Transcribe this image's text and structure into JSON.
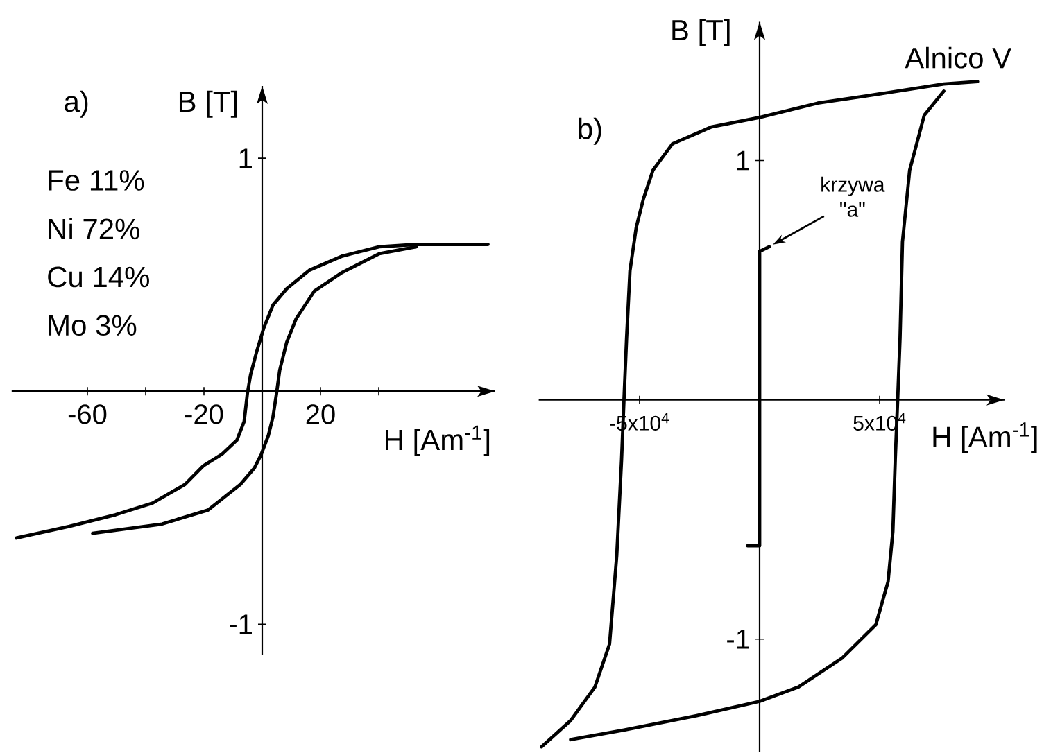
{
  "chart_data": [
    {
      "type": "line",
      "title": "a)",
      "xlabel": "H [Am$^{-1}$]",
      "ylabel": "B [T]",
      "annotations": [
        "Fe 11%",
        "Ni 72%",
        "Cu 14%",
        "Mo 3%"
      ],
      "xlim": [
        -86,
        80
      ],
      "ylim": [
        -1.13,
        1.31
      ],
      "xticks": [
        -60,
        {
          "value": -40,
          "label": null
        },
        -20,
        20,
        {
          "value": 40,
          "label": null
        }
      ],
      "yticks": [
        -1,
        1
      ],
      "series": [
        {
          "color": "#000000",
          "x": [
            77.5,
            52.9,
            40.2,
            27.5,
            16.3,
            8.4,
            3.7,
            0.5,
            -1.9,
            -4,
            -5.1,
            -6.2,
            -8.7,
            -13.8,
            -20.2,
            -26.5,
            -37.6,
            -50.3,
            -66.2,
            -84.4
          ],
          "values": [
            0.63,
            0.63,
            0.62,
            0.58,
            0.52,
            0.44,
            0.37,
            0.27,
            0.17,
            0.07,
            -0.01,
            -0.13,
            -0.21,
            -0.27,
            -0.32,
            -0.4,
            -0.48,
            -0.53,
            -0.58,
            -0.63
          ]
        },
        {
          "color": "#000000",
          "x": [
            -58.2,
            -34.4,
            -18.6,
            -7.5,
            -2.7,
            -0.3,
            2.1,
            3.7,
            4.9,
            6,
            8.4,
            11.6,
            17.9,
            27.5,
            40.2,
            52.9
          ],
          "values": [
            -0.61,
            -0.57,
            -0.51,
            -0.4,
            -0.33,
            -0.27,
            -0.19,
            -0.11,
            -0.01,
            0.09,
            0.21,
            0.31,
            0.43,
            0.51,
            0.59,
            0.62
          ]
        }
      ]
    },
    {
      "type": "line",
      "title": "b)",
      "xlabel": "H [Am$^{-1}$]",
      "ylabel": "B [T]",
      "annotations": [
        {
          "text": "krzywa \"a\"",
          "x": 4000,
          "y": 0.64
        }
      ],
      "xlim": [
        -92000,
        102000
      ],
      "ylim": [
        -1.47,
        1.58
      ],
      "xticks": [
        {
          "value": -50000,
          "label": "-5x10$^{4}$"
        },
        {
          "value": 50000,
          "label": "5x10$^{4}$"
        }
      ],
      "yticks": [
        -1,
        1
      ],
      "series": [
        {
          "name": "Alnico V",
          "color": "#000000",
          "x": [
            90800,
            76700,
            44400,
            24200,
            0,
            -20200,
            -36300,
            -44400,
            -48400,
            -51400,
            -54000,
            -55400,
            -56500,
            -57500,
            -59500,
            -62500,
            -68600,
            -78700,
            -90800
          ],
          "values": [
            1.33,
            1.32,
            1.27,
            1.24,
            1.18,
            1.14,
            1.07,
            0.96,
            0.84,
            0.72,
            0.54,
            0.26,
            0,
            -0.25,
            -0.65,
            -1.02,
            -1.2,
            -1.34,
            -1.45
          ]
        },
        {
          "color": "#000000",
          "x": [
            -78700,
            -56500,
            -26200,
            0,
            16200,
            34300,
            48400,
            53500,
            55500,
            56500,
            57500,
            58500,
            59500,
            62500,
            68600,
            76700
          ],
          "values": [
            -1.42,
            -1.38,
            -1.32,
            -1.26,
            -1.2,
            -1.08,
            -0.94,
            -0.76,
            -0.55,
            -0.25,
            0,
            0.26,
            0.66,
            0.96,
            1.19,
            1.29
          ]
        },
        {
          "color": "#000000",
          "x": [
            -5000,
            0,
            0,
            4000
          ],
          "values": [
            -0.61,
            -0.61,
            0.62,
            0.64
          ]
        }
      ]
    }
  ]
}
